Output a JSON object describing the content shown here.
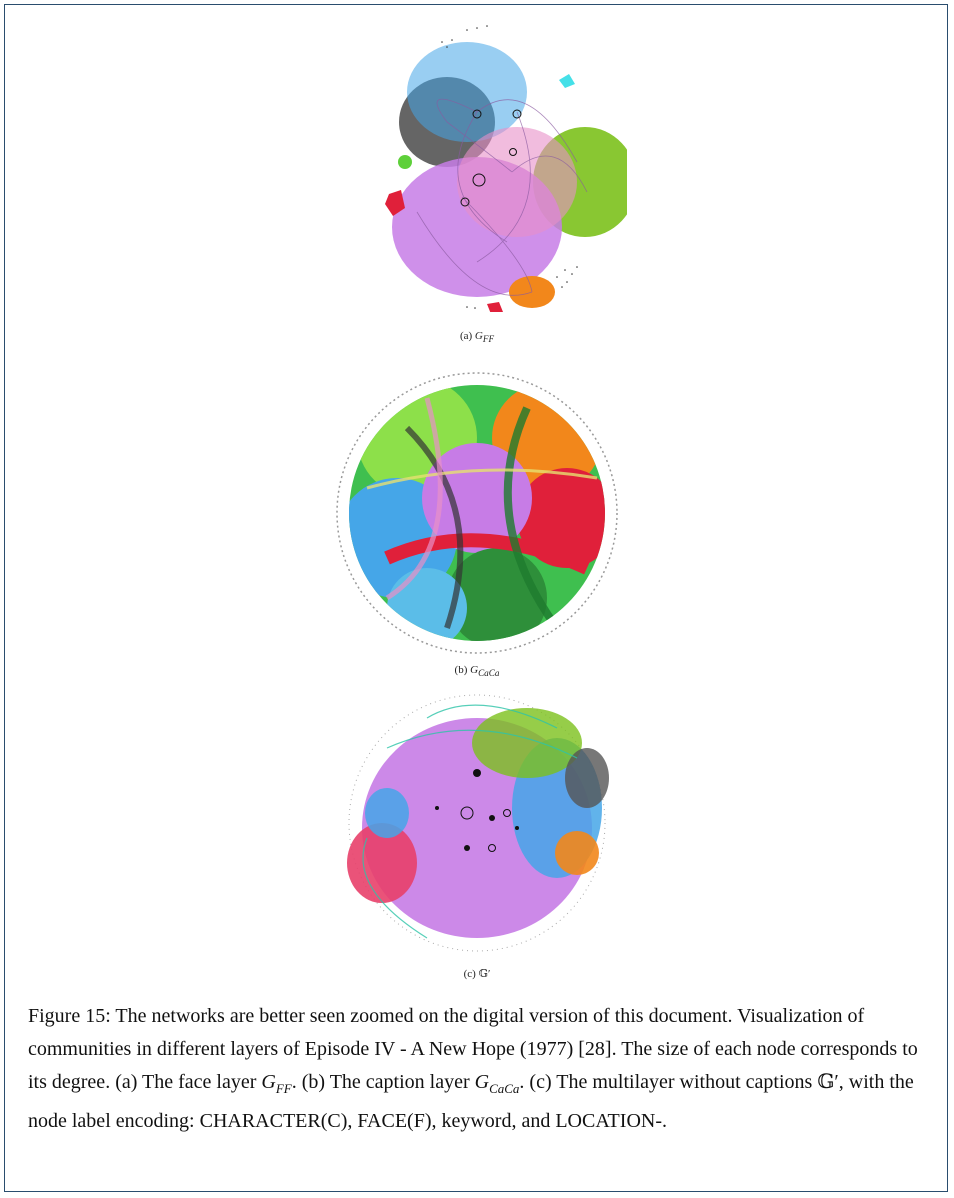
{
  "panels": [
    {
      "id": "a",
      "label_prefix": "(a)",
      "label_symbol": "G",
      "label_subscript": "FF"
    },
    {
      "id": "b",
      "label_prefix": "(b)",
      "label_symbol": "G",
      "label_subscript": "CaCa"
    },
    {
      "id": "c",
      "label_prefix": "(c)",
      "label_symbol": "𝔾′"
    }
  ],
  "caption": {
    "part1": "Figure 15: The networks are better seen zoomed on the digital version of this document. Visualization of communities in different layers of Episode IV - A New Hope (1977) [28]. The size of each node corresponds to its degree. (a) The face layer ",
    "sym_ff": "G",
    "sub_ff": "FF",
    "part2": ". (b) The caption layer ",
    "sym_caca": "G",
    "sub_caca": "CaCa",
    "part3": ". (c) The multilayer without captions ",
    "sym_multi": "𝔾′",
    "part4": ", with the node label encoding: CHARACTER(C), FACE(F), keyword, and LOCATION-."
  },
  "colors": {
    "border": "#2a4d6e",
    "violet": "#c77ce6",
    "green": "#7cc11c",
    "blue": "#45a6e8",
    "dark": "#4a4a4a",
    "red": "#e0203a",
    "orange": "#f2871b",
    "pink": "#e8406a",
    "teal": "#2ec4a8"
  }
}
